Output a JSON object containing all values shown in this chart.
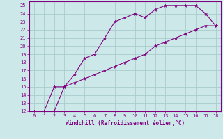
{
  "xlabel": "Windchill (Refroidissement éolien,°C)",
  "background_color": "#cce8e8",
  "grid_color": "#aacccc",
  "line_color": "#800080",
  "curve1_x": [
    0,
    1,
    2,
    3,
    4,
    5,
    6,
    7,
    8,
    9,
    10,
    11,
    12,
    13,
    14,
    15,
    16,
    17,
    18
  ],
  "curve1_y": [
    12,
    12,
    15,
    15,
    16.5,
    18.5,
    19,
    21,
    23,
    23.5,
    24,
    23.5,
    24.5,
    25,
    25,
    25,
    25,
    24,
    22.5
  ],
  "curve2_x": [
    0,
    1,
    2,
    3,
    4,
    5,
    6,
    7,
    8,
    9,
    10,
    11,
    12,
    13,
    14,
    15,
    16,
    17,
    18
  ],
  "curve2_y": [
    12,
    12,
    12,
    15,
    15.5,
    16,
    16.5,
    17,
    17.5,
    18,
    18.5,
    19,
    20,
    20.5,
    21,
    21.5,
    22,
    22.5,
    22.5
  ],
  "xlim": [
    -0.5,
    18.5
  ],
  "ylim": [
    12,
    25.5
  ],
  "xticks": [
    0,
    1,
    2,
    3,
    4,
    5,
    6,
    7,
    8,
    9,
    10,
    11,
    12,
    13,
    14,
    15,
    16,
    17,
    18
  ],
  "yticks": [
    12,
    13,
    14,
    15,
    16,
    17,
    18,
    19,
    20,
    21,
    22,
    23,
    24,
    25
  ],
  "tick_fontsize": 5.0,
  "xlabel_fontsize": 5.5,
  "marker_size": 3.5
}
